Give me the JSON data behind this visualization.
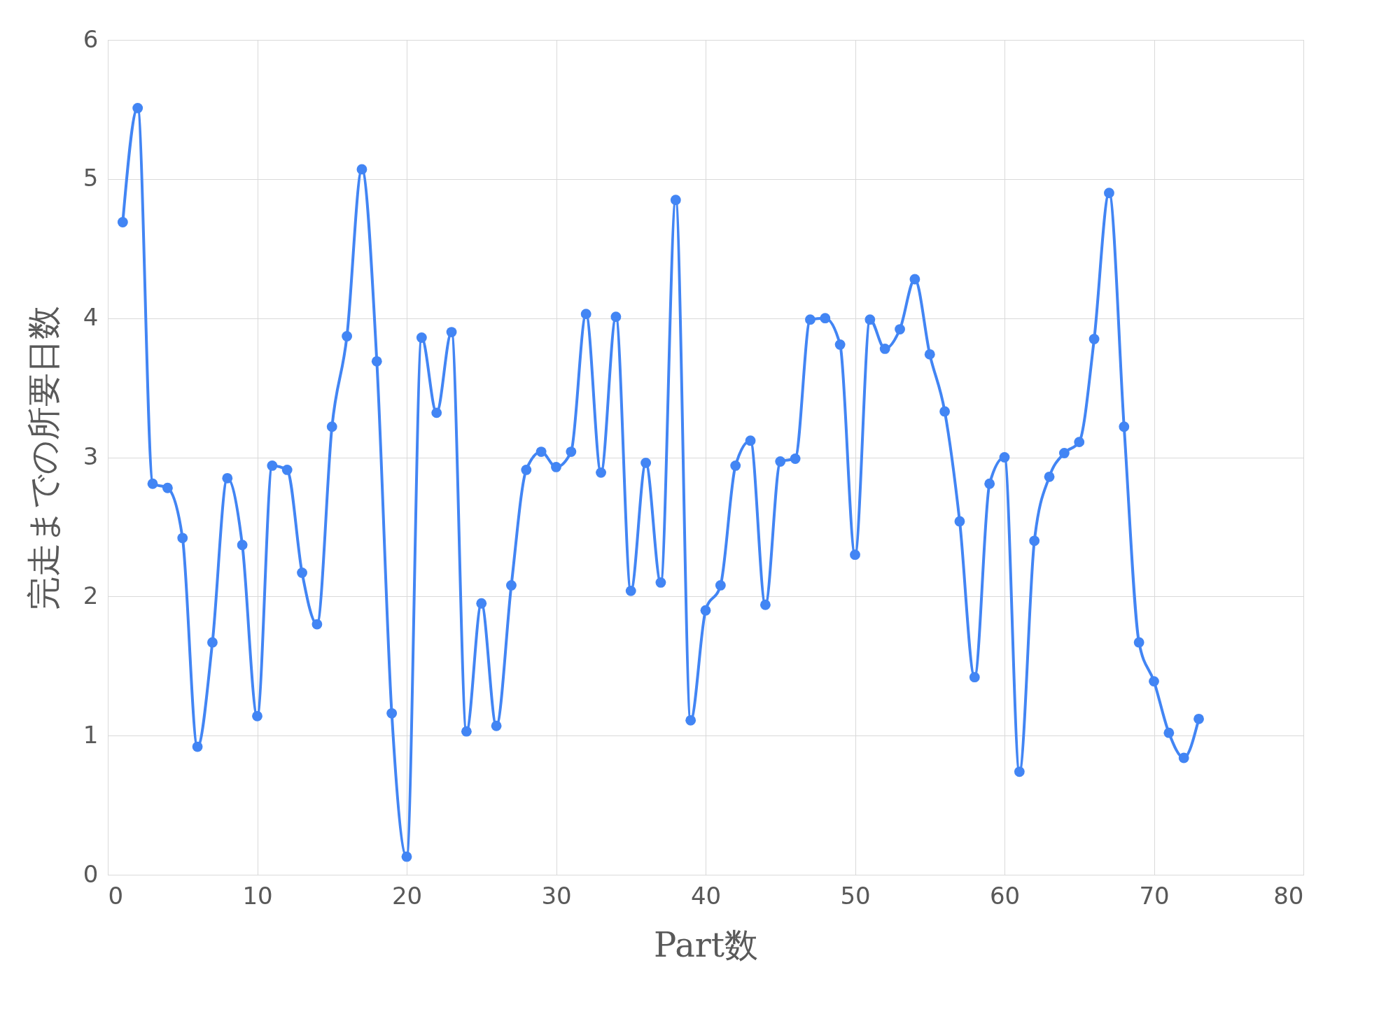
{
  "chart_data": {
    "type": "line",
    "xlabel": "Part数",
    "ylabel": "完走までの所要日数",
    "x": [
      1,
      2,
      3,
      4,
      5,
      6,
      7,
      8,
      9,
      10,
      11,
      12,
      13,
      14,
      15,
      16,
      17,
      18,
      19,
      20,
      21,
      22,
      23,
      24,
      25,
      26,
      27,
      28,
      29,
      30,
      31,
      32,
      33,
      34,
      35,
      36,
      37,
      38,
      39,
      40,
      41,
      42,
      43,
      44,
      45,
      46,
      47,
      48,
      49,
      50,
      51,
      52,
      53,
      54,
      55,
      56,
      57,
      58,
      59,
      60,
      61,
      62,
      63,
      64,
      65,
      66,
      67,
      68,
      69,
      70,
      71,
      72,
      73
    ],
    "series": [
      {
        "color": "#4285f4",
        "values": [
          4.69,
          5.51,
          2.81,
          2.78,
          2.42,
          0.92,
          1.67,
          2.85,
          2.37,
          1.14,
          2.94,
          2.91,
          2.17,
          1.8,
          3.22,
          3.87,
          5.07,
          3.69,
          1.16,
          0.13,
          3.86,
          3.32,
          3.9,
          1.03,
          1.95,
          1.07,
          2.08,
          2.91,
          3.04,
          2.93,
          3.04,
          4.03,
          2.89,
          4.01,
          2.04,
          2.96,
          2.1,
          4.85,
          1.11,
          1.9,
          2.08,
          2.94,
          3.12,
          1.94,
          2.97,
          2.99,
          3.99,
          4.0,
          3.81,
          2.3,
          3.99,
          3.78,
          3.92,
          4.28,
          3.74,
          3.33,
          2.54,
          1.42,
          2.81,
          3.0,
          0.74,
          2.4,
          2.86,
          3.03,
          3.11,
          3.85,
          4.9,
          3.22,
          1.67,
          1.39,
          1.02,
          0.84,
          1.12
        ]
      }
    ],
    "xlim": [
      0,
      80
    ],
    "xticks": [
      0,
      10,
      20,
      30,
      40,
      50,
      60,
      70,
      80
    ],
    "ylim": [
      0,
      6
    ],
    "yticks": [
      0,
      1,
      2,
      3,
      4,
      5,
      6
    ],
    "grid": true,
    "marker": "circle",
    "line_style": "solid"
  }
}
